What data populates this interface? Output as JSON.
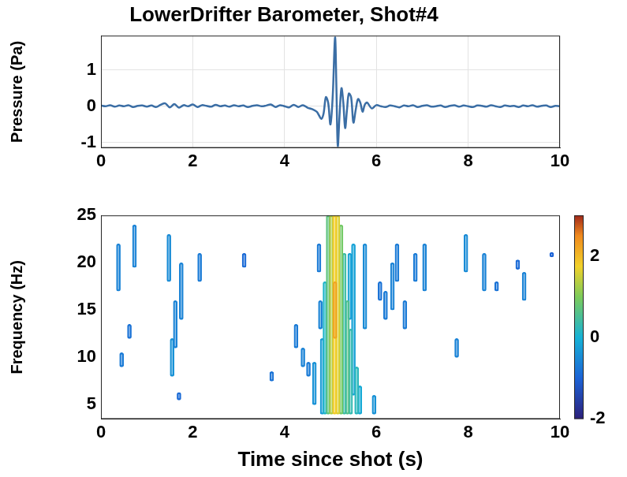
{
  "chart_data": [
    {
      "type": "line",
      "title": "LowerDrifter Barometer, Shot#4",
      "y_label": "Pressure (Pa)",
      "color": "#3b6ea5",
      "grid": true,
      "xlim": [
        0,
        10
      ],
      "xticks": [
        0,
        2,
        4,
        6,
        8,
        10
      ],
      "ylim": [
        -1.15,
        1.95
      ],
      "yticks": [
        -1,
        0,
        1
      ],
      "x": [
        0,
        0.1,
        0.2,
        0.3,
        0.4,
        0.5,
        0.6,
        0.7,
        0.8,
        0.9,
        1.0,
        1.1,
        1.2,
        1.3,
        1.4,
        1.5,
        1.6,
        1.7,
        1.8,
        1.9,
        2.0,
        2.1,
        2.2,
        2.3,
        2.4,
        2.5,
        2.6,
        2.7,
        2.8,
        2.9,
        3.0,
        3.1,
        3.2,
        3.3,
        3.4,
        3.5,
        3.6,
        3.7,
        3.8,
        3.9,
        4.0,
        4.1,
        4.2,
        4.3,
        4.4,
        4.5,
        4.6,
        4.7,
        4.75,
        4.8,
        4.85,
        4.9,
        4.95,
        5.0,
        5.05,
        5.1,
        5.13,
        5.16,
        5.2,
        5.24,
        5.28,
        5.32,
        5.36,
        5.4,
        5.45,
        5.5,
        5.55,
        5.6,
        5.65,
        5.7,
        5.75,
        5.8,
        5.9,
        6.0,
        6.1,
        6.2,
        6.3,
        6.4,
        6.5,
        6.6,
        6.7,
        6.8,
        6.9,
        7.0,
        7.1,
        7.2,
        7.3,
        7.4,
        7.5,
        7.6,
        7.7,
        7.8,
        7.9,
        8.0,
        8.1,
        8.2,
        8.3,
        8.4,
        8.5,
        8.6,
        8.7,
        8.8,
        8.9,
        9.0,
        9.1,
        9.2,
        9.3,
        9.4,
        9.5,
        9.6,
        9.7,
        9.8,
        9.9,
        10.0
      ],
      "values": [
        0.02,
        0.0,
        0.03,
        -0.01,
        0.02,
        0.0,
        0.03,
        -0.02,
        0.01,
        0.02,
        -0.01,
        0.02,
        -0.02,
        0.04,
        0.08,
        -0.03,
        0.06,
        -0.04,
        0.03,
        0.0,
        0.05,
        -0.02,
        0.03,
        0.01,
        -0.01,
        0.04,
        0.0,
        0.02,
        -0.01,
        0.03,
        0.0,
        0.02,
        -0.02,
        0.01,
        0.03,
        0.0,
        0.02,
        0.05,
        -0.02,
        0.03,
        0.0,
        -0.03,
        0.04,
        -0.02,
        0.03,
        -0.04,
        -0.08,
        -0.15,
        -0.25,
        -0.35,
        -0.2,
        0.25,
        0.1,
        -0.5,
        0.3,
        1.9,
        0.5,
        -1.1,
        -0.2,
        0.5,
        0.1,
        -0.6,
        -0.1,
        0.35,
        0.25,
        -0.45,
        -0.1,
        0.2,
        0.1,
        -0.15,
        0.05,
        0.1,
        -0.06,
        0.03,
        0.0,
        -0.02,
        0.02,
        0.0,
        -0.03,
        0.02,
        0.0,
        0.03,
        -0.02,
        0.01,
        0.03,
        -0.01,
        0.0,
        0.02,
        -0.02,
        0.01,
        0.03,
        -0.01,
        0.02,
        0.0,
        -0.02,
        0.02,
        0.01,
        -0.01,
        0.03,
        0.0,
        -0.02,
        0.02,
        0.0,
        0.01,
        -0.02,
        0.02,
        0.0,
        0.03,
        -0.01,
        0.01,
        0.02,
        -0.02,
        0.01,
        0.0
      ]
    },
    {
      "type": "contour",
      "x_label": "Time since shot (s)",
      "y_label": "Frequency (Hz)",
      "grid": false,
      "xlim": [
        0,
        10
      ],
      "xticks": [
        0,
        2,
        4,
        6,
        8,
        10
      ],
      "ylim": [
        3.5,
        25
      ],
      "yticks": [
        5,
        10,
        15,
        20,
        25
      ],
      "colorbar": {
        "lim": [
          -2,
          3
        ],
        "ticks": [
          -2,
          0,
          2
        ]
      },
      "contours": [
        {
          "t": 0.38,
          "f": [
            17,
            22
          ],
          "level": -0.6
        },
        {
          "t": 0.45,
          "f": [
            9,
            10.5
          ],
          "level": -0.7
        },
        {
          "t": 0.62,
          "f": [
            12,
            13.5
          ],
          "level": -0.8
        },
        {
          "t": 0.73,
          "f": [
            19.5,
            24
          ],
          "level": -0.6
        },
        {
          "t": 1.48,
          "f": [
            18,
            23
          ],
          "level": -0.5
        },
        {
          "t": 1.55,
          "f": [
            8,
            12
          ],
          "level": -0.4
        },
        {
          "t": 1.62,
          "f": [
            11,
            16
          ],
          "level": -0.6
        },
        {
          "t": 1.75,
          "f": [
            14,
            20
          ],
          "level": -0.6
        },
        {
          "t": 1.7,
          "f": [
            5.5,
            6.3
          ],
          "level": -0.9
        },
        {
          "t": 2.15,
          "f": [
            18,
            21
          ],
          "level": -0.7
        },
        {
          "t": 3.12,
          "f": [
            19.5,
            21
          ],
          "level": -0.9
        },
        {
          "t": 3.72,
          "f": [
            7.5,
            8.5
          ],
          "level": -0.8
        },
        {
          "t": 4.25,
          "f": [
            11,
            13.5
          ],
          "level": -0.7
        },
        {
          "t": 4.4,
          "f": [
            9,
            11
          ],
          "level": -0.6
        },
        {
          "t": 4.52,
          "f": [
            8,
            9.5
          ],
          "level": -0.7
        },
        {
          "t": 4.65,
          "f": [
            5,
            9.5
          ],
          "level": -0.4
        },
        {
          "t": 4.75,
          "f": [
            19,
            22
          ],
          "level": -0.7
        },
        {
          "t": 4.78,
          "f": [
            13,
            16
          ],
          "level": -0.6
        },
        {
          "t": 6.08,
          "f": [
            16,
            18
          ],
          "level": -0.8
        },
        {
          "t": 6.2,
          "f": [
            14,
            17
          ],
          "level": -0.7
        },
        {
          "t": 6.35,
          "f": [
            15,
            20
          ],
          "level": -0.6
        },
        {
          "t": 6.45,
          "f": [
            18,
            22
          ],
          "level": -0.7
        },
        {
          "t": 6.62,
          "f": [
            13,
            16
          ],
          "level": -0.7
        },
        {
          "t": 6.85,
          "f": [
            18,
            21
          ],
          "level": -0.7
        },
        {
          "t": 7.05,
          "f": [
            17,
            22
          ],
          "level": -0.6
        },
        {
          "t": 7.75,
          "f": [
            10,
            12
          ],
          "level": -0.6
        },
        {
          "t": 7.95,
          "f": [
            19,
            23
          ],
          "level": -0.5
        },
        {
          "t": 8.35,
          "f": [
            17,
            21
          ],
          "level": -0.6
        },
        {
          "t": 8.62,
          "f": [
            17,
            18
          ],
          "level": -0.8
        },
        {
          "t": 9.08,
          "f": [
            19.3,
            20.3
          ],
          "level": -0.9
        },
        {
          "t": 9.22,
          "f": [
            16,
            19
          ],
          "level": -0.6
        },
        {
          "t": 9.82,
          "f": [
            20.6,
            21.1
          ],
          "level": -1.0
        },
        {
          "t": 5.75,
          "f": [
            13,
            22
          ],
          "level": -0.5
        },
        {
          "t": 5.95,
          "f": [
            4,
            6
          ],
          "level": -0.4
        },
        {
          "t": 5.42,
          "f": [
            14,
            21
          ],
          "level": -0.2
        },
        {
          "t": 5.5,
          "f": [
            6,
            22
          ],
          "level": -0.2
        },
        {
          "t": 5.64,
          "f": [
            4,
            7
          ],
          "level": -0.1
        },
        {
          "t": 5.57,
          "f": [
            4,
            9
          ],
          "level": 0.2
        },
        {
          "t": 4.82,
          "f": [
            4,
            12
          ],
          "level": -0.3
        },
        {
          "t": 4.88,
          "f": [
            4,
            18
          ],
          "level": 0.1
        },
        {
          "t": 5.44,
          "f": [
            4,
            13
          ],
          "level": 0.3
        },
        {
          "t": 5.37,
          "f": [
            4,
            16
          ],
          "level": 0.6
        },
        {
          "t": 5.3,
          "f": [
            4,
            21
          ],
          "level": 0.4
        },
        {
          "t": 5.23,
          "f": [
            4,
            24
          ],
          "level": 0.9
        },
        {
          "t": 4.95,
          "f": [
            4,
            25
          ],
          "level": 0.7
        },
        {
          "t": 5.02,
          "f": [
            4,
            25
          ],
          "level": 1.3
        },
        {
          "t": 5.16,
          "f": [
            4,
            25
          ],
          "level": 1.6
        },
        {
          "t": 5.09,
          "f": [
            4,
            25
          ],
          "level": 1.8
        },
        {
          "t": 5.1,
          "f": [
            12,
            18
          ],
          "level": 2.2
        }
      ]
    }
  ]
}
